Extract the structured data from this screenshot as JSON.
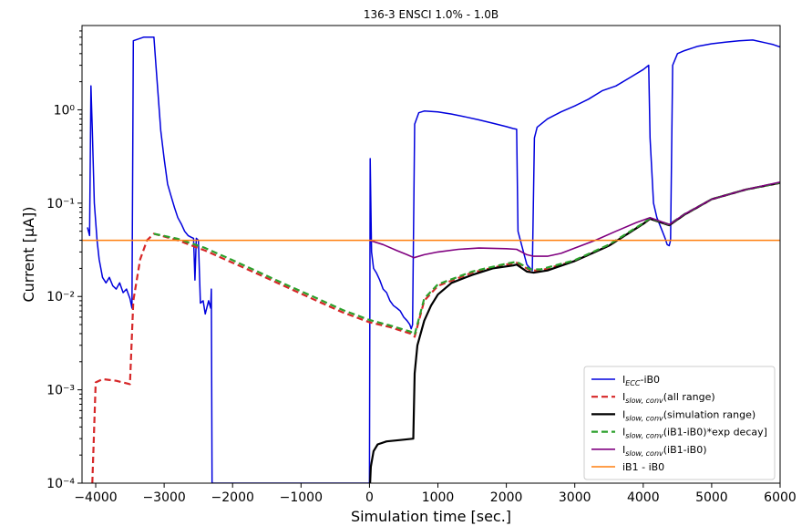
{
  "chart_data": {
    "type": "line",
    "title": "136-3 ENSCI 1.0% - 1.0B",
    "xlabel": "Simulation time [sec.]",
    "ylabel": "Current [μA])",
    "xlim": [
      -4200,
      6000
    ],
    "ylim": [
      0.0001,
      8
    ],
    "yscale": "log",
    "grid": false,
    "legend_position": "lower-right",
    "x_ticks": [
      -4000,
      -3000,
      -2000,
      -1000,
      0,
      1000,
      2000,
      3000,
      4000,
      5000,
      6000
    ],
    "x_tick_labels": [
      "−4000",
      "−3000",
      "−2000",
      "−1000",
      "0",
      "1000",
      "2000",
      "3000",
      "4000",
      "5000",
      "6000"
    ],
    "y_ticks": [
      0.0001,
      0.001,
      0.01,
      0.1,
      1
    ],
    "y_tick_labels": [
      "10⁻⁴",
      "10⁻³",
      "10⁻²",
      "10⁻¹",
      "10⁰"
    ],
    "series": [
      {
        "name": "I_ECC-iB0",
        "legend_main": "I",
        "legend_sub": "ECC",
        "legend_rest": "-iB0",
        "color": "#0000dd",
        "style": "solid",
        "width": 1.5,
        "points": [
          [
            -4120,
            0.055
          ],
          [
            -4090,
            0.045
          ],
          [
            -4070,
            1.8
          ],
          [
            -4050,
            0.6
          ],
          [
            -4020,
            0.1
          ],
          [
            -3980,
            0.04
          ],
          [
            -3950,
            0.025
          ],
          [
            -3900,
            0.016
          ],
          [
            -3850,
            0.014
          ],
          [
            -3800,
            0.016
          ],
          [
            -3750,
            0.013
          ],
          [
            -3700,
            0.012
          ],
          [
            -3650,
            0.014
          ],
          [
            -3600,
            0.011
          ],
          [
            -3550,
            0.012
          ],
          [
            -3500,
            0.0095
          ],
          [
            -3470,
            0.0075
          ],
          [
            -3450,
            5.5
          ],
          [
            -3300,
            6.0
          ],
          [
            -3150,
            6.0
          ],
          [
            -3120,
            3.0
          ],
          [
            -3050,
            0.6
          ],
          [
            -3000,
            0.3
          ],
          [
            -2950,
            0.16
          ],
          [
            -2900,
            0.12
          ],
          [
            -2850,
            0.09
          ],
          [
            -2800,
            0.07
          ],
          [
            -2750,
            0.06
          ],
          [
            -2700,
            0.05
          ],
          [
            -2650,
            0.045
          ],
          [
            -2600,
            0.043
          ],
          [
            -2570,
            0.042
          ],
          [
            -2550,
            0.015
          ],
          [
            -2530,
            0.042
          ],
          [
            -2500,
            0.04
          ],
          [
            -2470,
            0.0085
          ],
          [
            -2430,
            0.009
          ],
          [
            -2400,
            0.0065
          ],
          [
            -2350,
            0.009
          ],
          [
            -2320,
            0.0075
          ],
          [
            -2310,
            0.012
          ],
          [
            -2300,
            0.0001
          ],
          [
            0,
            0.0001
          ],
          [
            10,
            0.3
          ],
          [
            30,
            0.03
          ],
          [
            60,
            0.02
          ],
          [
            100,
            0.018
          ],
          [
            150,
            0.015
          ],
          [
            200,
            0.012
          ],
          [
            250,
            0.011
          ],
          [
            300,
            0.009
          ],
          [
            350,
            0.008
          ],
          [
            400,
            0.0075
          ],
          [
            450,
            0.007
          ],
          [
            500,
            0.006
          ],
          [
            550,
            0.0055
          ],
          [
            590,
            0.005
          ],
          [
            610,
            0.0045
          ],
          [
            630,
            0.005
          ],
          [
            660,
            0.7
          ],
          [
            720,
            0.93
          ],
          [
            800,
            0.97
          ],
          [
            1000,
            0.95
          ],
          [
            1200,
            0.9
          ],
          [
            1400,
            0.84
          ],
          [
            1600,
            0.78
          ],
          [
            1800,
            0.72
          ],
          [
            2000,
            0.66
          ],
          [
            2100,
            0.63
          ],
          [
            2150,
            0.62
          ],
          [
            2170,
            0.05
          ],
          [
            2250,
            0.03
          ],
          [
            2300,
            0.022
          ],
          [
            2350,
            0.02
          ],
          [
            2380,
            0.019
          ],
          [
            2410,
            0.5
          ],
          [
            2450,
            0.65
          ],
          [
            2600,
            0.8
          ],
          [
            2800,
            0.95
          ],
          [
            3000,
            1.1
          ],
          [
            3200,
            1.3
          ],
          [
            3400,
            1.6
          ],
          [
            3600,
            1.8
          ],
          [
            3800,
            2.2
          ],
          [
            4000,
            2.7
          ],
          [
            4080,
            3.0
          ],
          [
            4100,
            0.5
          ],
          [
            4150,
            0.1
          ],
          [
            4200,
            0.07
          ],
          [
            4280,
            0.05
          ],
          [
            4320,
            0.042
          ],
          [
            4350,
            0.036
          ],
          [
            4380,
            0.035
          ],
          [
            4400,
            0.04
          ],
          [
            4430,
            3.0
          ],
          [
            4500,
            4.0
          ],
          [
            4600,
            4.3
          ],
          [
            4800,
            4.8
          ],
          [
            5000,
            5.1
          ],
          [
            5200,
            5.3
          ],
          [
            5400,
            5.5
          ],
          [
            5600,
            5.6
          ],
          [
            5800,
            5.2
          ],
          [
            5900,
            5.0
          ],
          [
            6000,
            4.7
          ]
        ]
      },
      {
        "name": "I_slow,conv(all range)",
        "legend_main": "I",
        "legend_sub": "slow, conv",
        "legend_rest": "(all range)",
        "color": "#d62728",
        "style": "dashed",
        "width": 2.2,
        "points": [
          [
            -4050,
            0.0001
          ],
          [
            -4000,
            0.0012
          ],
          [
            -3900,
            0.0013
          ],
          [
            -3700,
            0.00125
          ],
          [
            -3500,
            0.00115
          ],
          [
            -3450,
            0.009
          ],
          [
            -3350,
            0.025
          ],
          [
            -3250,
            0.04
          ],
          [
            -3150,
            0.047
          ],
          [
            -2800,
            0.04
          ],
          [
            -2400,
            0.031
          ],
          [
            -2000,
            0.023
          ],
          [
            -1600,
            0.017
          ],
          [
            -1200,
            0.0125
          ],
          [
            -800,
            0.0092
          ],
          [
            -400,
            0.0068
          ],
          [
            0,
            0.0053
          ],
          [
            300,
            0.0047
          ],
          [
            600,
            0.004
          ],
          [
            660,
            0.0037
          ],
          [
            800,
            0.009
          ],
          [
            1000,
            0.013
          ],
          [
            1500,
            0.018
          ],
          [
            2000,
            0.022
          ],
          [
            2150,
            0.023
          ],
          [
            2350,
            0.019
          ],
          [
            2500,
            0.019
          ],
          [
            3000,
            0.024
          ],
          [
            3500,
            0.035
          ],
          [
            4000,
            0.06
          ],
          [
            4100,
            0.068
          ],
          [
            4380,
            0.058
          ],
          [
            4600,
            0.075
          ],
          [
            5000,
            0.11
          ],
          [
            5500,
            0.14
          ],
          [
            6000,
            0.165
          ]
        ]
      },
      {
        "name": "I_slow,conv(simulation range)",
        "legend_main": "I",
        "legend_sub": "slow, conv",
        "legend_rest": "(simulation range)",
        "color": "#000000",
        "style": "solid",
        "width": 2.2,
        "points": [
          [
            0,
            7e-05
          ],
          [
            20,
            0.00015
          ],
          [
            60,
            0.00022
          ],
          [
            120,
            0.00026
          ],
          [
            250,
            0.00028
          ],
          [
            450,
            0.00029
          ],
          [
            640,
            0.0003
          ],
          [
            660,
            0.0015
          ],
          [
            700,
            0.003
          ],
          [
            800,
            0.0055
          ],
          [
            900,
            0.008
          ],
          [
            1000,
            0.0105
          ],
          [
            1200,
            0.014
          ],
          [
            1500,
            0.017
          ],
          [
            1800,
            0.02
          ],
          [
            2100,
            0.0215
          ],
          [
            2150,
            0.022
          ],
          [
            2300,
            0.0185
          ],
          [
            2400,
            0.018
          ],
          [
            2600,
            0.019
          ],
          [
            3000,
            0.024
          ],
          [
            3500,
            0.035
          ],
          [
            4000,
            0.06
          ],
          [
            4100,
            0.068
          ],
          [
            4380,
            0.058
          ],
          [
            4600,
            0.075
          ],
          [
            5000,
            0.11
          ],
          [
            5500,
            0.14
          ],
          [
            6000,
            0.165
          ]
        ]
      },
      {
        "name": "I_slow,conv(iB1-iB0)*exp decay]",
        "legend_main": "I",
        "legend_sub": "slow, conv",
        "legend_rest": "(iB1-iB0)*exp decay]",
        "color": "#2ca02c",
        "style": "dashed",
        "width": 2.2,
        "points": [
          [
            -3150,
            0.047
          ],
          [
            -2800,
            0.0415
          ],
          [
            -2400,
            0.033
          ],
          [
            -2000,
            0.0245
          ],
          [
            -1600,
            0.018
          ],
          [
            -1200,
            0.0132
          ],
          [
            -800,
            0.0098
          ],
          [
            -400,
            0.0072
          ],
          [
            0,
            0.0056
          ],
          [
            300,
            0.0049
          ],
          [
            600,
            0.0042
          ],
          [
            660,
            0.0039
          ],
          [
            800,
            0.0095
          ],
          [
            1000,
            0.0135
          ],
          [
            1500,
            0.0185
          ],
          [
            2000,
            0.0225
          ],
          [
            2150,
            0.0235
          ],
          [
            2350,
            0.0195
          ],
          [
            2500,
            0.0195
          ],
          [
            3000,
            0.0245
          ],
          [
            3500,
            0.036
          ],
          [
            4000,
            0.061
          ],
          [
            4100,
            0.069
          ],
          [
            4380,
            0.059
          ],
          [
            4600,
            0.076
          ],
          [
            5000,
            0.11
          ],
          [
            5500,
            0.14
          ],
          [
            6000,
            0.166
          ]
        ]
      },
      {
        "name": "I_slow,conv(iB1-iB0)",
        "legend_main": "I",
        "legend_sub": "slow, conv",
        "legend_rest": "(iB1-iB0)",
        "color": "#800080",
        "style": "solid",
        "width": 1.6,
        "points": [
          [
            0,
            0.04
          ],
          [
            200,
            0.036
          ],
          [
            400,
            0.031
          ],
          [
            550,
            0.028
          ],
          [
            650,
            0.026
          ],
          [
            800,
            0.028
          ],
          [
            1000,
            0.03
          ],
          [
            1300,
            0.032
          ],
          [
            1600,
            0.033
          ],
          [
            2000,
            0.0325
          ],
          [
            2150,
            0.032
          ],
          [
            2300,
            0.028
          ],
          [
            2400,
            0.027
          ],
          [
            2600,
            0.027
          ],
          [
            2800,
            0.029
          ],
          [
            3000,
            0.033
          ],
          [
            3300,
            0.04
          ],
          [
            3600,
            0.05
          ],
          [
            3900,
            0.062
          ],
          [
            4100,
            0.07
          ],
          [
            4380,
            0.059
          ],
          [
            4600,
            0.076
          ],
          [
            5000,
            0.11
          ],
          [
            5500,
            0.14
          ],
          [
            6000,
            0.168
          ]
        ]
      },
      {
        "name": "iB1 - iB0",
        "legend_main": "iB1 - iB0",
        "legend_sub": "",
        "legend_rest": "",
        "color": "#ff7f0e",
        "style": "solid",
        "width": 1.5,
        "points": [
          [
            -4200,
            0.04
          ],
          [
            6000,
            0.04
          ]
        ]
      }
    ]
  }
}
